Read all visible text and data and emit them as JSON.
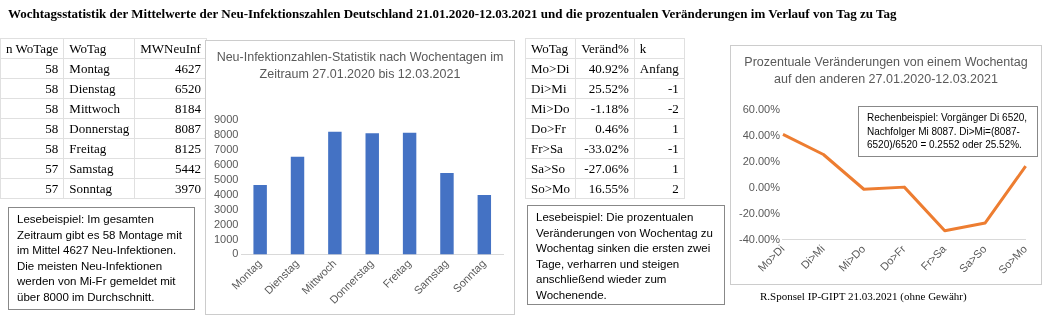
{
  "chart_data": [
    {
      "type": "other",
      "title": "Wochtagsstatistik der Mittelwerte der Neu-Infektionszahlen Deutschland 21.01.2020-12.03.2021 und die prozentualen Veränderungen im Verlauf von Tag zu Tag",
      "annotations": [
        "R.Sponsel IP-GIPT 21.03.2021 (ohne Gewähr)"
      ]
    },
    {
      "type": "other",
      "xlabel": "WoTag",
      "categories": [
        "Montag",
        "Dienstag",
        "Mittwoch",
        "Donnerstag",
        "Freitag",
        "Samstag",
        "Sonntag"
      ],
      "series": [
        {
          "name": "n WoTage",
          "values": [
            58,
            58,
            58,
            58,
            58,
            57,
            57
          ],
          "value_labels": [
            "58",
            "58",
            "58",
            "58",
            "58",
            "57",
            "57"
          ]
        },
        {
          "name": "MWNeuInf",
          "values": [
            4627,
            6520,
            8184,
            8087,
            8125,
            5442,
            3970
          ],
          "value_labels": [
            "4627",
            "6520",
            "8184",
            "8087",
            "8125",
            "5442",
            "3970"
          ]
        }
      ],
      "annotations": [
        "Lesebeispiel: Im gesamten Zeitraum gibt es 58 Montage mit im Mittel 4627 Neu-Infektionen. Die meisten Neu-Infektionen werden von Mi-Fr gemeldet mit über 8000 im Durchschnitt."
      ]
    },
    {
      "type": "bar",
      "title": "Neu-Infektionzahlen-Statistik nach Wochentagen im Zeitraum 27.01.2020 bis 12.03.2021",
      "categories": [
        "Montag",
        "Dienstag",
        "Mittwoch",
        "Donnerstag",
        "Freitag",
        "Samstag",
        "Sonntag"
      ],
      "values": [
        4627,
        6520,
        8184,
        8087,
        8125,
        5442,
        3970
      ],
      "color": "#4472c4",
      "ylim": [
        0,
        9000
      ],
      "yticks": [
        0,
        1000,
        2000,
        3000,
        4000,
        5000,
        6000,
        7000,
        8000,
        9000
      ]
    },
    {
      "type": "other",
      "xlabel": "WoTag",
      "categories": [
        "Mo>Di",
        "Di>Mi",
        "Mi>Do",
        "Do>Fr",
        "Fr>Sa",
        "Sa>So",
        "So>Mo"
      ],
      "series": [
        {
          "name": "Veränd%",
          "values": [
            40.92,
            25.52,
            -1.18,
            0.46,
            -33.02,
            -27.06,
            16.55
          ],
          "value_labels": [
            "40.92%",
            "25.52%",
            "-1.18%",
            "0.46%",
            "-33.02%",
            "-27.06%",
            "16.55%"
          ]
        },
        {
          "name": "k",
          "values": [
            null,
            -1,
            -2,
            1,
            -1,
            1,
            2
          ],
          "value_labels": [
            "Anfang",
            "-1",
            "-2",
            "1",
            "-1",
            "1",
            "2"
          ]
        }
      ],
      "annotations": [
        "Lesebeispiel: Die prozentualen Veränderungen von Wochentag zu Wochentag sinken die ersten zwei Tage, verharren und steigen anschließend wieder zum Wochenende."
      ]
    },
    {
      "type": "line",
      "title": "Prozentuale Veränderungen von einem Wochentag auf den anderen 27.01.2020-12.03.2021",
      "categories": [
        "Mo>Di",
        "Di>Mi",
        "Mi>Do",
        "Do>Fr",
        "Fr>Sa",
        "Sa>So",
        "So>Mo"
      ],
      "values": [
        40.92,
        25.52,
        -1.18,
        0.46,
        -33.02,
        -27.06,
        16.55
      ],
      "color": "#ed7d31",
      "marker": "none",
      "ylim": [
        -40,
        60
      ],
      "yticks": [
        {
          "value": -40,
          "label": "-40.00%"
        },
        {
          "value": -20,
          "label": "-20.00%"
        },
        {
          "value": 0,
          "label": "0.00%"
        },
        {
          "value": 20,
          "label": "20.00%"
        },
        {
          "value": 40,
          "label": "40.00%"
        },
        {
          "value": 60,
          "label": "60.00%"
        }
      ],
      "annotations": [
        "Rechenbeispiel: Vorgänger Di 6520, Nachfolger Mi 8087. Di>Mi=(8087-6520)/6520 = 0.2552 oder 25.52%."
      ]
    }
  ]
}
